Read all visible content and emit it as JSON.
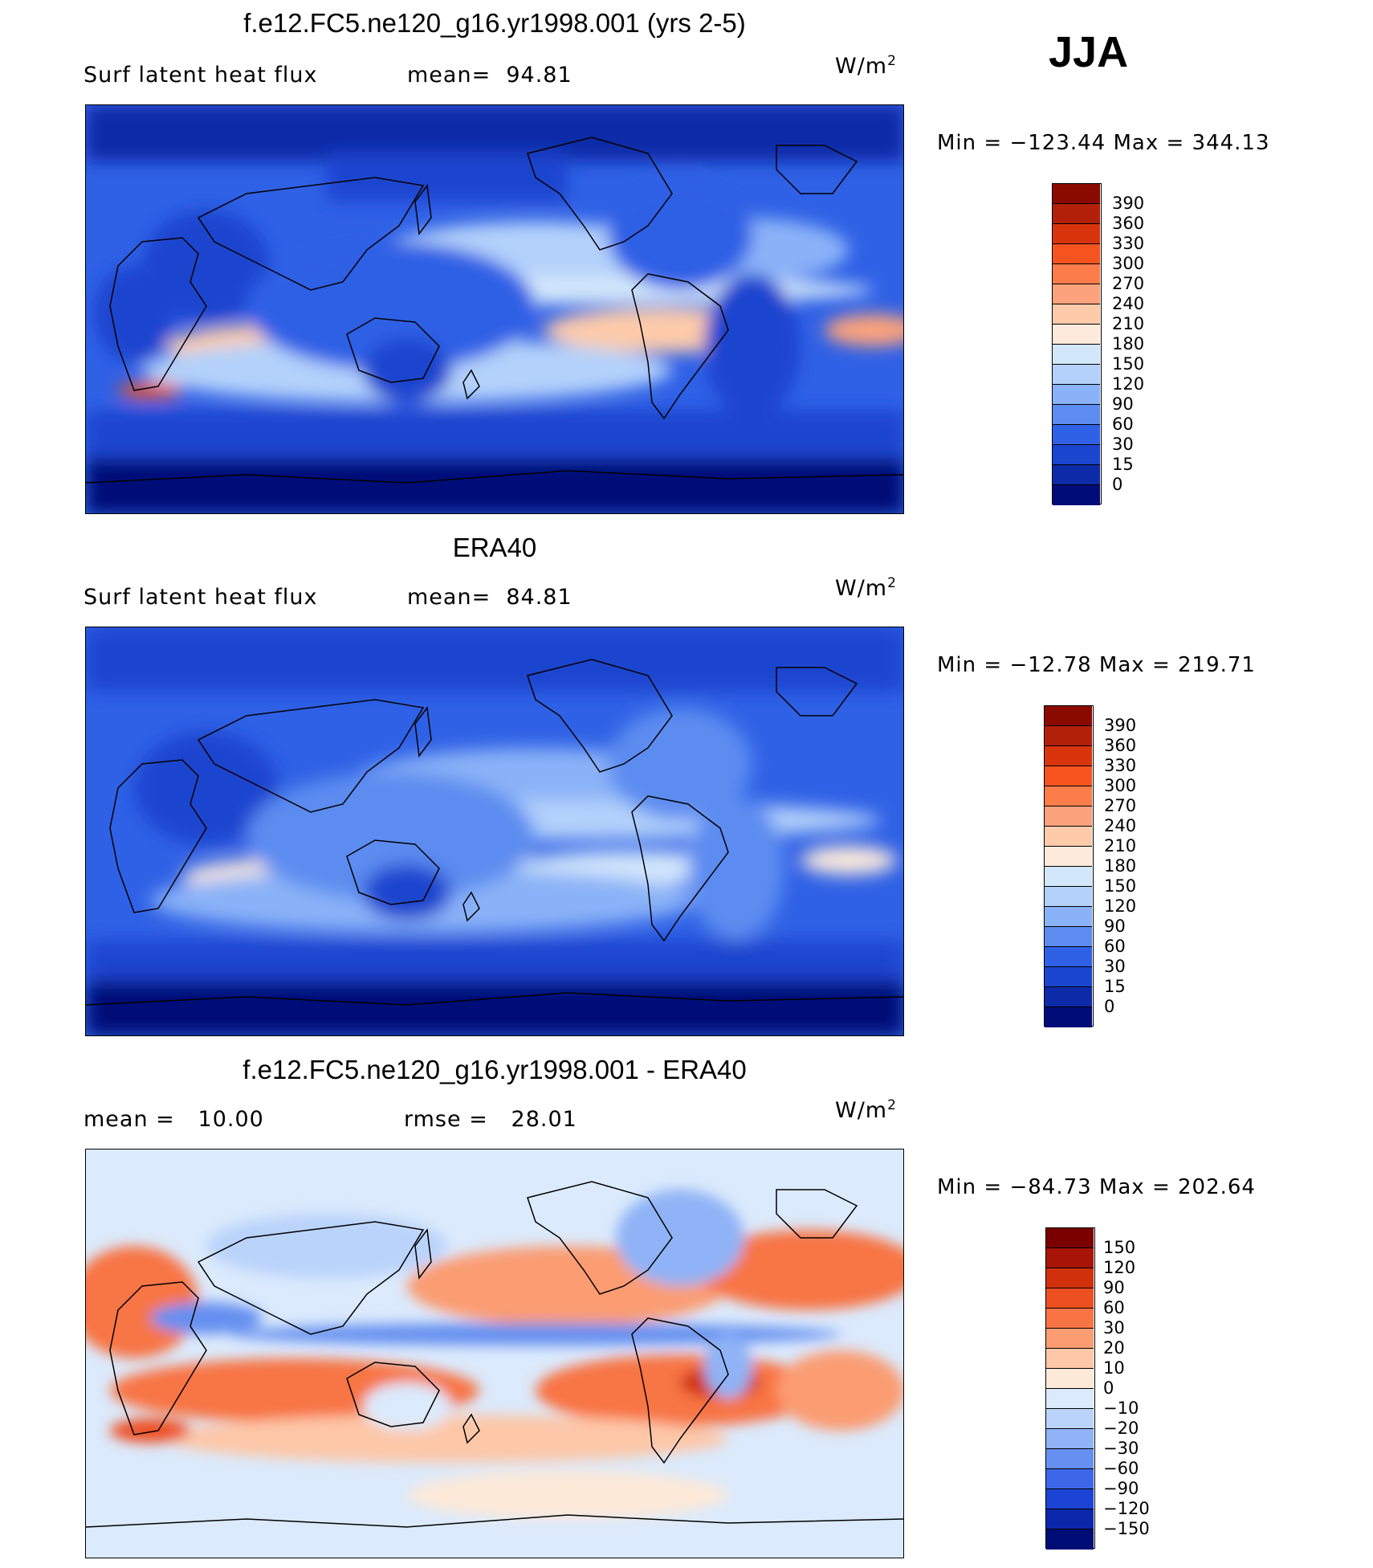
{
  "season": "JJA",
  "units": {
    "text": "W/m",
    "sup": "2"
  },
  "panels": [
    {
      "title": "f.e12.FC5.ne120_g16.yr1998.001 (yrs 2-5)",
      "left_label": "Surf latent heat flux",
      "right_label": "mean=  94.81",
      "minmax": "Min = −123.44 Max = 344.13",
      "map": "model latent heat flux"
    },
    {
      "title": "ERA40",
      "left_label": "Surf latent heat flux",
      "right_label": "mean=  84.81",
      "minmax": "Min = −12.78 Max = 219.71",
      "map": "observed latent heat flux"
    },
    {
      "title": "f.e12.FC5.ne120_g16.yr1998.001 - ERA40",
      "left_label": "mean =   10.00",
      "right_label": "rmse =   28.01",
      "minmax": "Min = −84.73 Max = 202.64",
      "map": "difference model minus ERA40"
    }
  ],
  "legends": {
    "flux": {
      "levels": [
        "390",
        "360",
        "330",
        "300",
        "270",
        "240",
        "210",
        "180",
        "150",
        "120",
        "90",
        "60",
        "30",
        "15",
        "0"
      ],
      "colors": [
        "#8b0a00",
        "#b3200a",
        "#d9350d",
        "#f5541f",
        "#fc7c4a",
        "#fca27c",
        "#fdcbaa",
        "#fdeadb",
        "#d3e7fb",
        "#b3d1fb",
        "#8ab2f8",
        "#5c8cf0",
        "#2f61e6",
        "#1a45cf",
        "#0d2aa8",
        "#000d78"
      ]
    },
    "diff": {
      "levels": [
        "150",
        "120",
        "90",
        "60",
        "30",
        "20",
        "10",
        "0",
        "−10",
        "−20",
        "−30",
        "−60",
        "−90",
        "−120",
        "−150"
      ],
      "colors": [
        "#7a0000",
        "#a81508",
        "#d0300c",
        "#ed5020",
        "#f87444",
        "#fb9c72",
        "#fdc7a8",
        "#fde9d8",
        "#dbeafc",
        "#b9d3fb",
        "#8fb3f6",
        "#6590f0",
        "#3b67e8",
        "#1c44d4",
        "#0c27aa",
        "#000c75"
      ]
    }
  }
}
